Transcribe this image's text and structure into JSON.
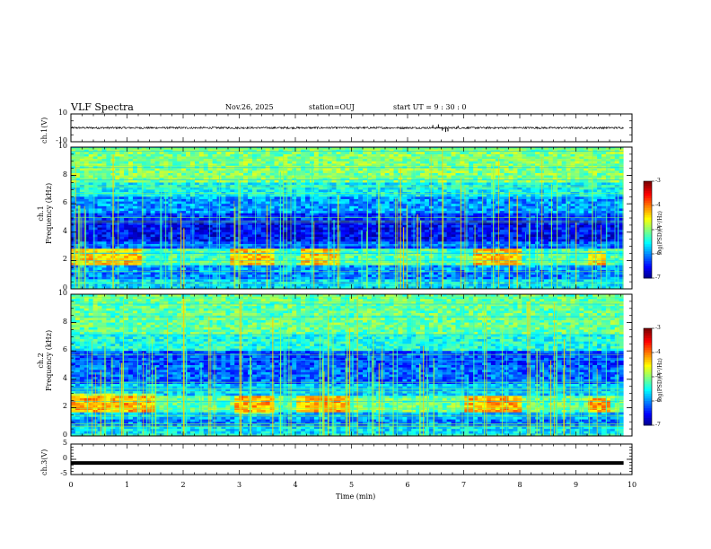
{
  "header": {
    "title": "VLF Spectra",
    "date": "Nov.26, 2025",
    "station": "station=OUJ",
    "start_ut": "start  UT =  9 : 30 : 0"
  },
  "chart_data": [
    {
      "type": "line",
      "name": "ch1-waveform",
      "ylabel": "ch.1(V)",
      "ylim": [
        -10,
        10
      ],
      "y_ticks": [
        "10",
        "-10"
      ],
      "baseline": 0,
      "noise_amplitude": 1,
      "spikes": [
        {
          "x": 6.55,
          "y": 2.5
        },
        {
          "x": 6.62,
          "y": -2
        },
        {
          "x": 6.68,
          "y": -3
        },
        {
          "x": 6.72,
          "y": -2.5
        },
        {
          "x": 6.45,
          "y": 2
        },
        {
          "x": 6.9,
          "y": 1.5
        }
      ],
      "xlim": [
        0,
        10
      ]
    },
    {
      "type": "heatmap",
      "name": "ch1-spectrogram",
      "ylabel_line1": "ch.1",
      "ylabel_line2": "Frequency (kHz)",
      "xlim": [
        0,
        10
      ],
      "ylim": [
        0,
        10
      ],
      "y_ticks": [
        "10",
        "8",
        "6",
        "4",
        "2",
        "0"
      ],
      "colorbar": {
        "label": "log(PSD)(V²/Hz)",
        "ticks": [
          "-3",
          "-4",
          "-5",
          "-6",
          "-7"
        ],
        "range": [
          -7,
          -3
        ]
      },
      "bands": [
        {
          "fmin": 0,
          "fmax": 0.6,
          "level": -5.6
        },
        {
          "fmin": 0.6,
          "fmax": 1.2,
          "level": -6.0
        },
        {
          "fmin": 1.2,
          "fmax": 1.6,
          "level": -5.9
        },
        {
          "fmin": 1.6,
          "fmax": 2.8,
          "level": -5.2
        },
        {
          "fmin": 2.8,
          "fmax": 3.3,
          "level": -6.1
        },
        {
          "fmin": 3.3,
          "fmax": 4.8,
          "level": -6.5
        },
        {
          "fmin": 4.8,
          "fmax": 5.3,
          "level": -6.3
        },
        {
          "fmin": 5.3,
          "fmax": 6.5,
          "level": -5.9
        },
        {
          "fmin": 6.5,
          "fmax": 7.5,
          "level": -5.5
        },
        {
          "fmin": 7.5,
          "fmax": 10,
          "level": -5.0
        }
      ],
      "hiss_events": [
        {
          "t0": 0.0,
          "t1": 1.3,
          "fmin": 1.6,
          "fmax": 2.8
        },
        {
          "t0": 2.8,
          "t1": 3.6,
          "fmin": 1.7,
          "fmax": 2.8
        },
        {
          "t0": 4.1,
          "t1": 4.8,
          "fmin": 1.7,
          "fmax": 2.8
        },
        {
          "t0": 7.2,
          "t1": 8.0,
          "fmin": 1.6,
          "fmax": 2.8
        },
        {
          "t0": 9.2,
          "t1": 9.5,
          "fmin": 1.7,
          "fmax": 2.6
        }
      ]
    },
    {
      "type": "heatmap",
      "name": "ch2-spectrogram",
      "ylabel_line1": "ch.2",
      "ylabel_line2": "Frequency (kHz)",
      "xlim": [
        0,
        10
      ],
      "ylim": [
        0,
        10
      ],
      "y_ticks": [
        "10",
        "8",
        "6",
        "4",
        "2",
        "0"
      ],
      "colorbar": {
        "label": "log(PSD)(V²/Hz)",
        "ticks": [
          "-3",
          "-4",
          "-5",
          "-6",
          "-7"
        ],
        "range": [
          -7,
          -3
        ]
      },
      "bands": [
        {
          "fmin": 0,
          "fmax": 0.6,
          "level": -5.6
        },
        {
          "fmin": 0.6,
          "fmax": 1.2,
          "level": -6.0
        },
        {
          "fmin": 1.2,
          "fmax": 1.6,
          "level": -5.8
        },
        {
          "fmin": 1.6,
          "fmax": 2.8,
          "level": -5.1
        },
        {
          "fmin": 2.8,
          "fmax": 3.6,
          "level": -5.7
        },
        {
          "fmin": 3.6,
          "fmax": 5.0,
          "level": -6.1
        },
        {
          "fmin": 5.0,
          "fmax": 6.0,
          "level": -6.2
        },
        {
          "fmin": 6.0,
          "fmax": 7.2,
          "level": -5.4
        },
        {
          "fmin": 7.2,
          "fmax": 10,
          "level": -5.1
        }
      ],
      "hiss_events": [
        {
          "t0": 0.0,
          "t1": 1.5,
          "fmin": 1.6,
          "fmax": 3.0
        },
        {
          "t0": 2.9,
          "t1": 3.6,
          "fmin": 1.5,
          "fmax": 2.9
        },
        {
          "t0": 4.0,
          "t1": 5.0,
          "fmin": 1.6,
          "fmax": 2.9
        },
        {
          "t0": 7.0,
          "t1": 8.0,
          "fmin": 1.6,
          "fmax": 2.9
        },
        {
          "t0": 9.2,
          "t1": 9.6,
          "fmin": 1.7,
          "fmax": 2.6
        }
      ]
    },
    {
      "type": "line",
      "name": "ch3-waveform",
      "ylabel": "ch.3(V)",
      "ylim": [
        -5,
        5
      ],
      "y_ticks": [
        "5",
        "0",
        "-5"
      ],
      "baseline": -1.2,
      "xlim": [
        0,
        10
      ]
    }
  ],
  "x_axis": {
    "label": "Time (min)",
    "ticks": [
      "0",
      "1",
      "2",
      "3",
      "4",
      "5",
      "6",
      "7",
      "8",
      "9",
      "10"
    ],
    "range": [
      0,
      10
    ]
  }
}
